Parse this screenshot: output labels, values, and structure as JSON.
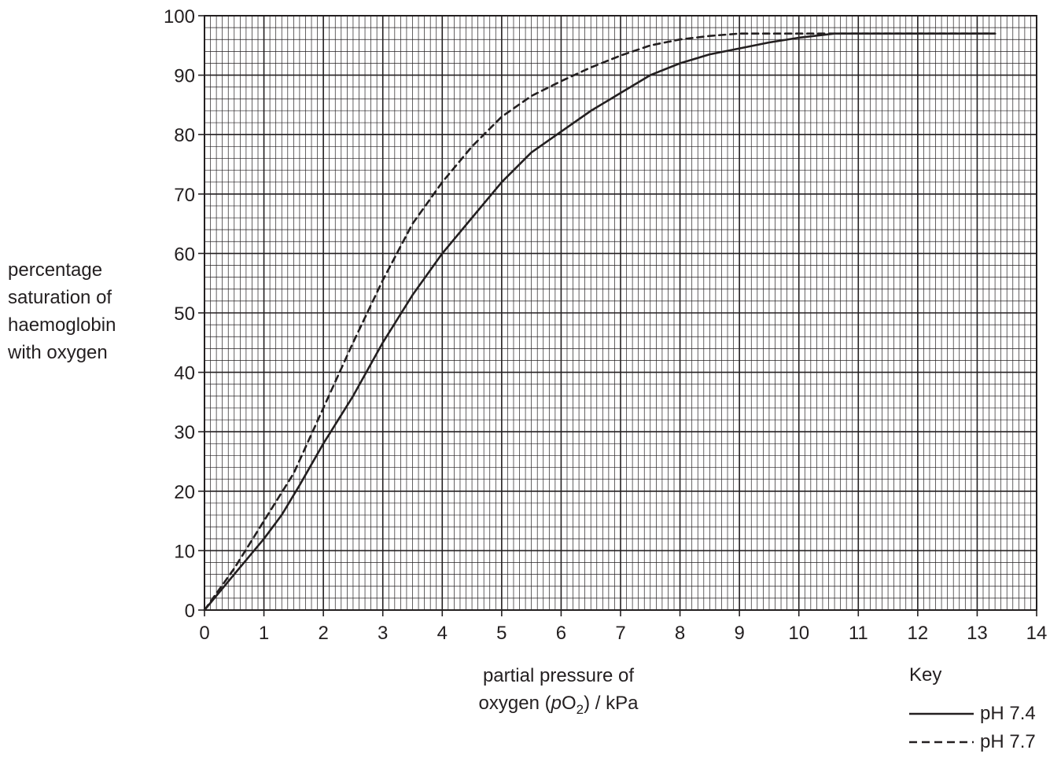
{
  "chart_data": {
    "type": "line",
    "ylabel_lines": [
      "percentage",
      "saturation of",
      "haemoglobin",
      "with oxygen"
    ],
    "xlabel_line1": "partial pressure of",
    "xlabel_pre": "oxygen (",
    "xlabel_italic": "p",
    "xlabel_o": "O",
    "xlabel_sub": "2",
    "xlabel_post": ") / kPa",
    "xlim": [
      0,
      14
    ],
    "ylim": [
      0,
      100
    ],
    "x_ticks": [
      0,
      1,
      2,
      3,
      4,
      5,
      6,
      7,
      8,
      9,
      10,
      11,
      12,
      13,
      14
    ],
    "y_ticks": [
      0,
      10,
      20,
      30,
      40,
      50,
      60,
      70,
      80,
      90,
      100
    ],
    "grid": true,
    "legend": {
      "title": "Key",
      "placement": "bottom-right"
    },
    "series": [
      {
        "name": "pH 7.4",
        "style": "solid",
        "points": [
          [
            0,
            0
          ],
          [
            0.5,
            6
          ],
          [
            1,
            12
          ],
          [
            1.3,
            16
          ],
          [
            1.6,
            21
          ],
          [
            2,
            28
          ],
          [
            2.5,
            36
          ],
          [
            3,
            45
          ],
          [
            3.5,
            53
          ],
          [
            4,
            60
          ],
          [
            4.5,
            66
          ],
          [
            5,
            72
          ],
          [
            5.5,
            77
          ],
          [
            6,
            80.5
          ],
          [
            6.5,
            84
          ],
          [
            7,
            87
          ],
          [
            7.5,
            90
          ],
          [
            8,
            92
          ],
          [
            8.5,
            93.5
          ],
          [
            9,
            94.5
          ],
          [
            9.5,
            95.5
          ],
          [
            10,
            96.3
          ],
          [
            10.6,
            97
          ],
          [
            11,
            97
          ],
          [
            12,
            97
          ],
          [
            13,
            97
          ],
          [
            13.3,
            97
          ]
        ]
      },
      {
        "name": "pH 7.7",
        "style": "dashed",
        "points": [
          [
            0,
            0
          ],
          [
            0.5,
            7
          ],
          [
            1,
            15
          ],
          [
            1.5,
            23
          ],
          [
            2,
            34
          ],
          [
            2.5,
            45
          ],
          [
            3,
            55.5
          ],
          [
            3.5,
            65
          ],
          [
            4,
            72
          ],
          [
            4.5,
            78
          ],
          [
            5,
            83
          ],
          [
            5.5,
            86.5
          ],
          [
            6,
            89
          ],
          [
            6.5,
            91.3
          ],
          [
            7,
            93.3
          ],
          [
            7.5,
            95
          ],
          [
            8,
            96
          ],
          [
            8.5,
            96.6
          ],
          [
            9,
            97
          ],
          [
            10,
            97
          ],
          [
            11,
            97
          ],
          [
            12,
            97
          ],
          [
            13,
            97
          ],
          [
            13.3,
            97
          ]
        ]
      }
    ]
  }
}
